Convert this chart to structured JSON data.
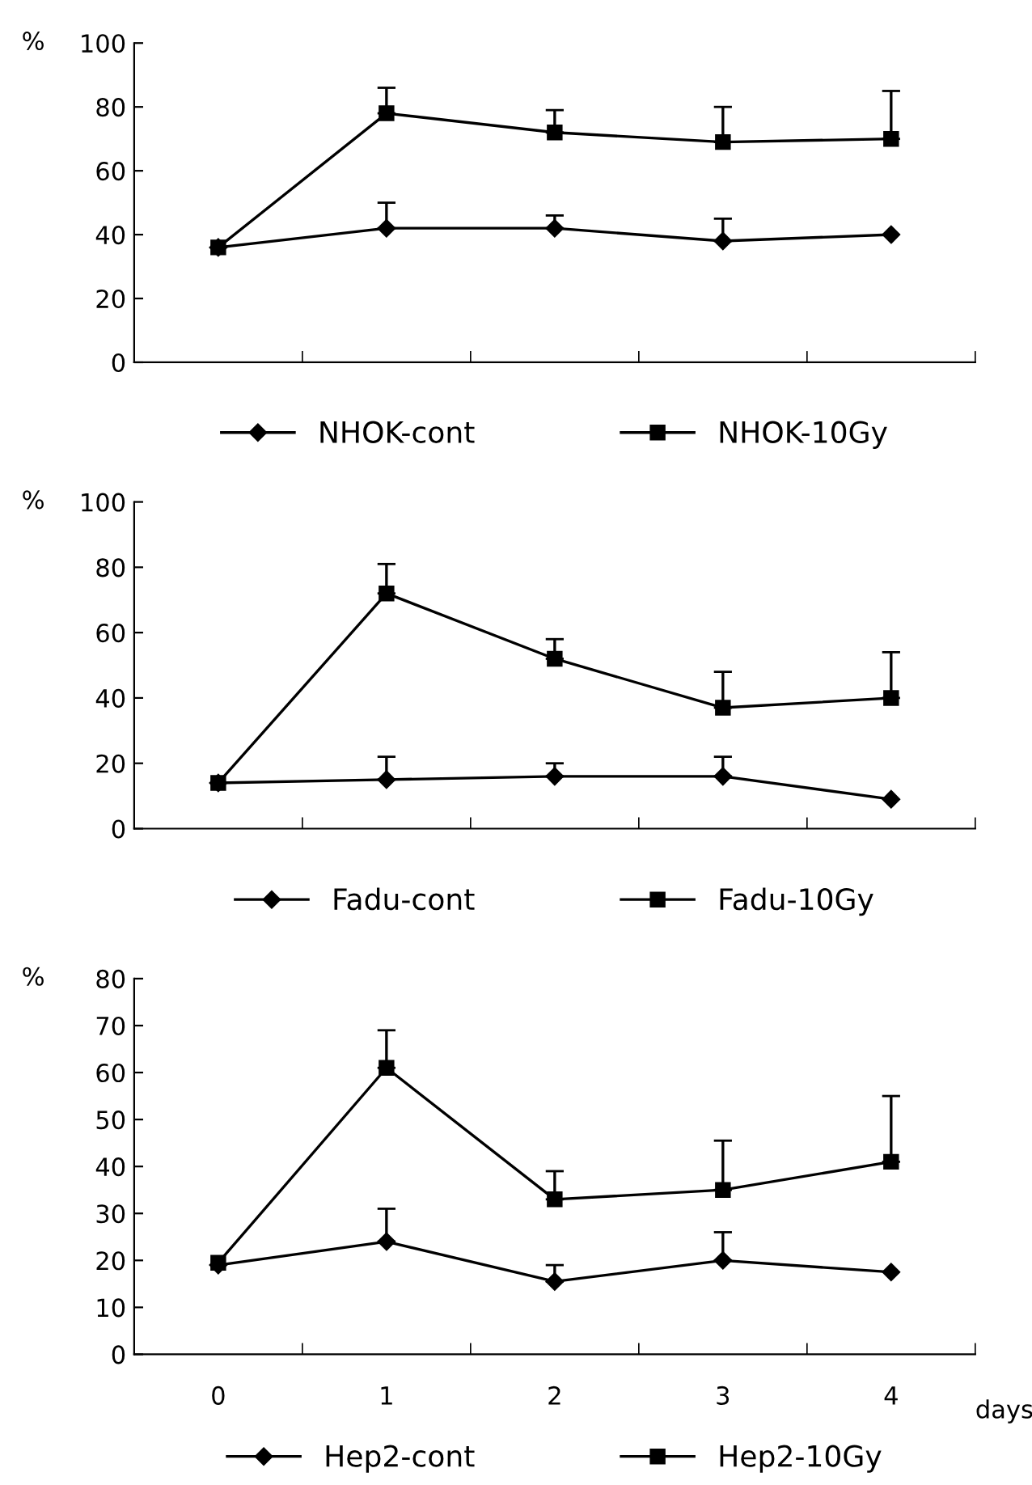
{
  "chart_data": [
    {
      "type": "line",
      "ylabel": "%",
      "categories": [
        null,
        null,
        null,
        null,
        null
      ],
      "ylim": [
        0,
        100
      ],
      "yticks": [
        0,
        20,
        40,
        60,
        80,
        100
      ],
      "tick_labels": "y",
      "legend": "bottom",
      "grid": false,
      "series": [
        {
          "name": "NHOK-cont",
          "color": "#000000",
          "marker": "diamond",
          "values": [
            36,
            42,
            42,
            38,
            40
          ],
          "errors": [
            null,
            [
              42,
              50
            ],
            [
              42,
              46
            ],
            [
              38,
              45
            ],
            null
          ]
        },
        {
          "name": "NHOK-10Gy",
          "color": "#000000",
          "marker": "square",
          "values": [
            36,
            78,
            72,
            69,
            70
          ],
          "errors": [
            null,
            [
              78,
              86
            ],
            [
              72,
              79
            ],
            [
              69,
              80
            ],
            [
              70,
              85
            ]
          ]
        }
      ]
    },
    {
      "type": "line",
      "ylabel": "%",
      "categories": [
        null,
        null,
        null,
        null,
        null
      ],
      "ylim": [
        0,
        100
      ],
      "yticks": [
        0,
        20,
        40,
        60,
        80,
        100
      ],
      "tick_labels": "y",
      "legend": "bottom",
      "grid": false,
      "series": [
        {
          "name": "Fadu-cont",
          "color": "#000000",
          "marker": "diamond",
          "values": [
            14,
            15,
            16,
            16,
            9
          ],
          "errors": [
            null,
            [
              15,
              22
            ],
            [
              16,
              20
            ],
            [
              16,
              22
            ],
            null
          ]
        },
        {
          "name": "Fadu-10Gy",
          "color": "#000000",
          "marker": "square",
          "values": [
            14,
            72,
            52,
            37,
            40
          ],
          "errors": [
            null,
            [
              72,
              81
            ],
            [
              52,
              58
            ],
            [
              37,
              48
            ],
            [
              40,
              54
            ]
          ]
        }
      ]
    },
    {
      "type": "line",
      "ylabel": "%",
      "xlabel": "days",
      "categories": [
        "0",
        "1",
        "2",
        "3",
        "4"
      ],
      "ylim": [
        0,
        80
      ],
      "yticks": [
        0,
        10,
        20,
        30,
        40,
        50,
        60,
        70,
        80
      ],
      "legend": "bottom",
      "grid": false,
      "series": [
        {
          "name": "Hep2-cont",
          "color": "#000000",
          "marker": "diamond",
          "values": [
            19,
            24,
            15.5,
            20,
            17.5
          ],
          "errors": [
            null,
            [
              24,
              31
            ],
            [
              15.5,
              19
            ],
            [
              20,
              26
            ],
            null
          ]
        },
        {
          "name": "Hep2-10Gy",
          "color": "#000000",
          "marker": "square",
          "values": [
            19.5,
            61,
            33,
            35,
            41
          ],
          "errors": [
            null,
            [
              61,
              69
            ],
            [
              33,
              39
            ],
            [
              35,
              45.5
            ],
            [
              41,
              55
            ]
          ]
        }
      ]
    }
  ]
}
